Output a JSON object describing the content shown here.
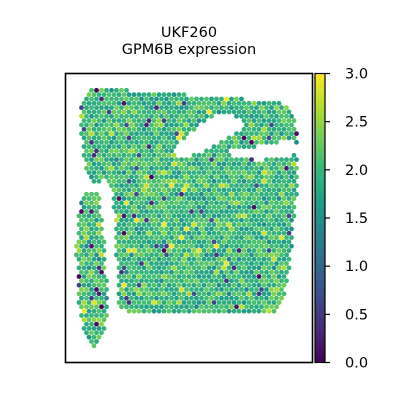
{
  "chart_data": {
    "type": "scatter",
    "title": "UKF260",
    "subtitle": "GPM6B expression",
    "xlabel": "",
    "ylabel": "",
    "grid": false,
    "legend": "none",
    "colorbar": {
      "colormap": "viridis",
      "vmin": 0.0,
      "vmax": 3.0,
      "ticks": [
        0.0,
        0.5,
        1.0,
        1.5,
        2.0,
        2.5,
        3.0
      ],
      "tick_labels": [
        "0.0",
        "0.5",
        "1.0",
        "1.5",
        "2.0",
        "2.5",
        "3.0"
      ],
      "placement": "right"
    },
    "tissue": {
      "description_values": "hexagonal spot array; per-spot expression values mostly between 1.5 and 2.6",
      "typical_value": 2.0,
      "value_spread": 0.4,
      "low_outlier_fraction": 0.04,
      "high_outlier_fraction": 0.03
    }
  },
  "colors": {
    "viridis": [
      "#440154",
      "#482878",
      "#3e4989",
      "#31688e",
      "#26828e",
      "#1f9e89",
      "#35b779",
      "#6ece58",
      "#b5de2b",
      "#fde725"
    ]
  }
}
